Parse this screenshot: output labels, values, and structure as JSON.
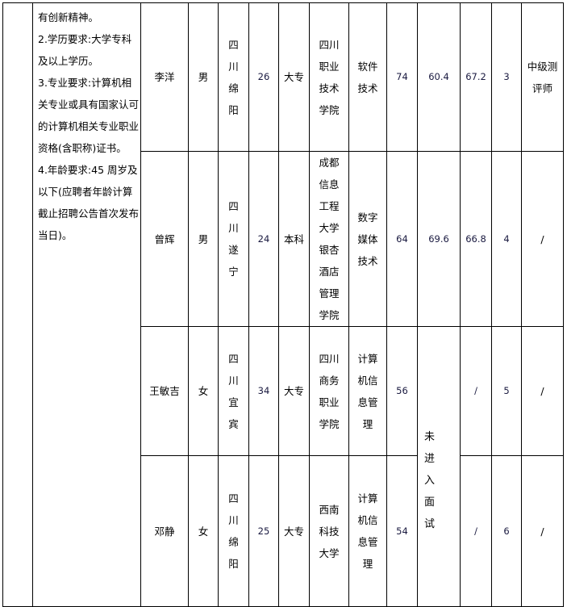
{
  "requirements": "有创新精神。\n2.学历要求:大学专科及以上学历。\n3.专业要求:计算机相关专业或具有国家认可的计算机相关专业职业资格(含职称)证书。\n4.年龄要求:45 周岁及以下(应聘者年龄计算截止招聘公告首次发布当日)。",
  "not_interviewed": "未进入面试",
  "rows": [
    {
      "name": "李洋",
      "gender": "男",
      "origin": "四川绵阳",
      "age": "26",
      "education": "大专",
      "school": "四川职业技术学院",
      "major": "软件技术",
      "score1": "74",
      "score2": "60.4",
      "score3": "67.2",
      "rank": "3",
      "title": "中级测评师"
    },
    {
      "name": "曾辉",
      "gender": "男",
      "origin": "四川遂宁",
      "age": "24",
      "education": "本科",
      "school": "成都信息工程大学银杏酒店管理学院",
      "major": "数字媒体技术",
      "score1": "64",
      "score2": "69.6",
      "score3": "66.8",
      "rank": "4",
      "title": "/"
    },
    {
      "name": "王敏吉",
      "gender": "女",
      "origin": "四川宜宾",
      "age": "34",
      "education": "大专",
      "school": "四川商务职业学院",
      "major": "计算机信息管理",
      "score1": "56",
      "score3": "/",
      "rank": "5",
      "title": "/"
    },
    {
      "name": "邓静",
      "gender": "女",
      "origin": "四川绵阳",
      "age": "25",
      "education": "大专",
      "school": "西南科技大学",
      "major": "计算机信息管理",
      "score1": "54",
      "score3": "/",
      "rank": "6",
      "title": "/"
    }
  ]
}
